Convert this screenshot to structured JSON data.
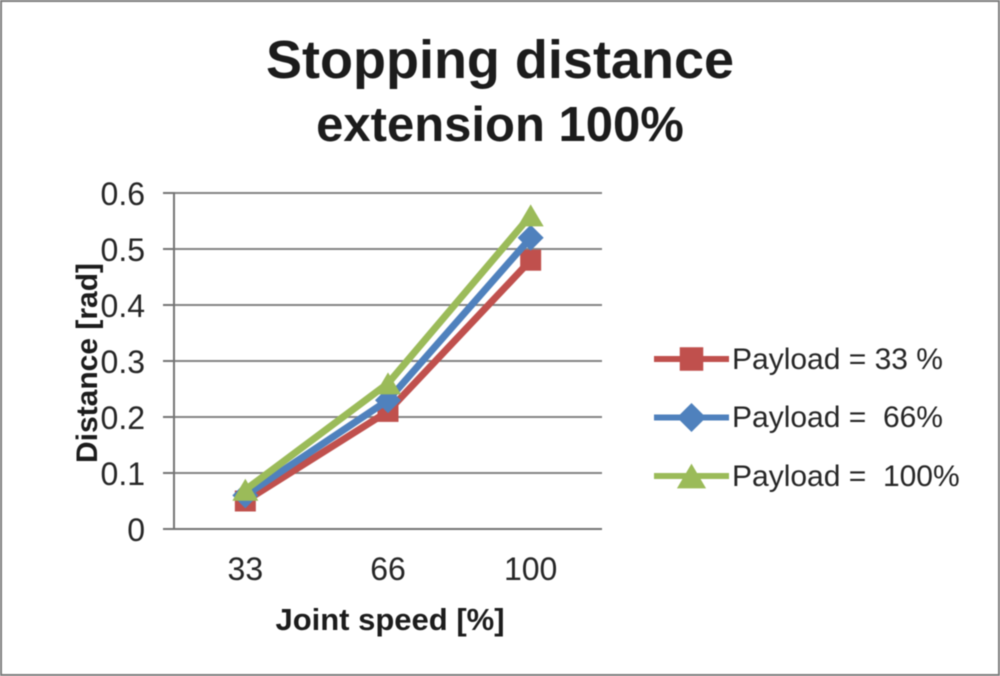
{
  "chart_data": {
    "type": "line",
    "title": "Stopping distance",
    "subtitle": "extension 100%",
    "xlabel": "Joint speed [%]",
    "ylabel": "Distance [rad]",
    "categories": [
      33,
      66,
      100
    ],
    "x_tick_labels": [
      "33",
      "66",
      "100"
    ],
    "y_tick_labels": [
      "0",
      "0.1",
      "0.2",
      "0.3",
      "0.4",
      "0.5",
      "0.6"
    ],
    "ylim": [
      0,
      0.6
    ],
    "grid": true,
    "legend_position": "right",
    "series": [
      {
        "name": "Payload = 33 %",
        "marker": "square",
        "color": "#c0504d",
        "values": [
          0.05,
          0.21,
          0.48
        ]
      },
      {
        "name": "Payload =  66%",
        "marker": "diamond",
        "color": "#4f81bd",
        "values": [
          0.06,
          0.23,
          0.52
        ]
      },
      {
        "name": "Payload =  100%",
        "marker": "triangle",
        "color": "#9bbb59",
        "values": [
          0.07,
          0.26,
          0.56
        ]
      }
    ]
  },
  "styles": {
    "background": "#ffffff",
    "frame_border_color": "#7d7d7d",
    "axis_color": "#757575",
    "grid_color": "#858585",
    "text_color": "#1c1c1c"
  }
}
